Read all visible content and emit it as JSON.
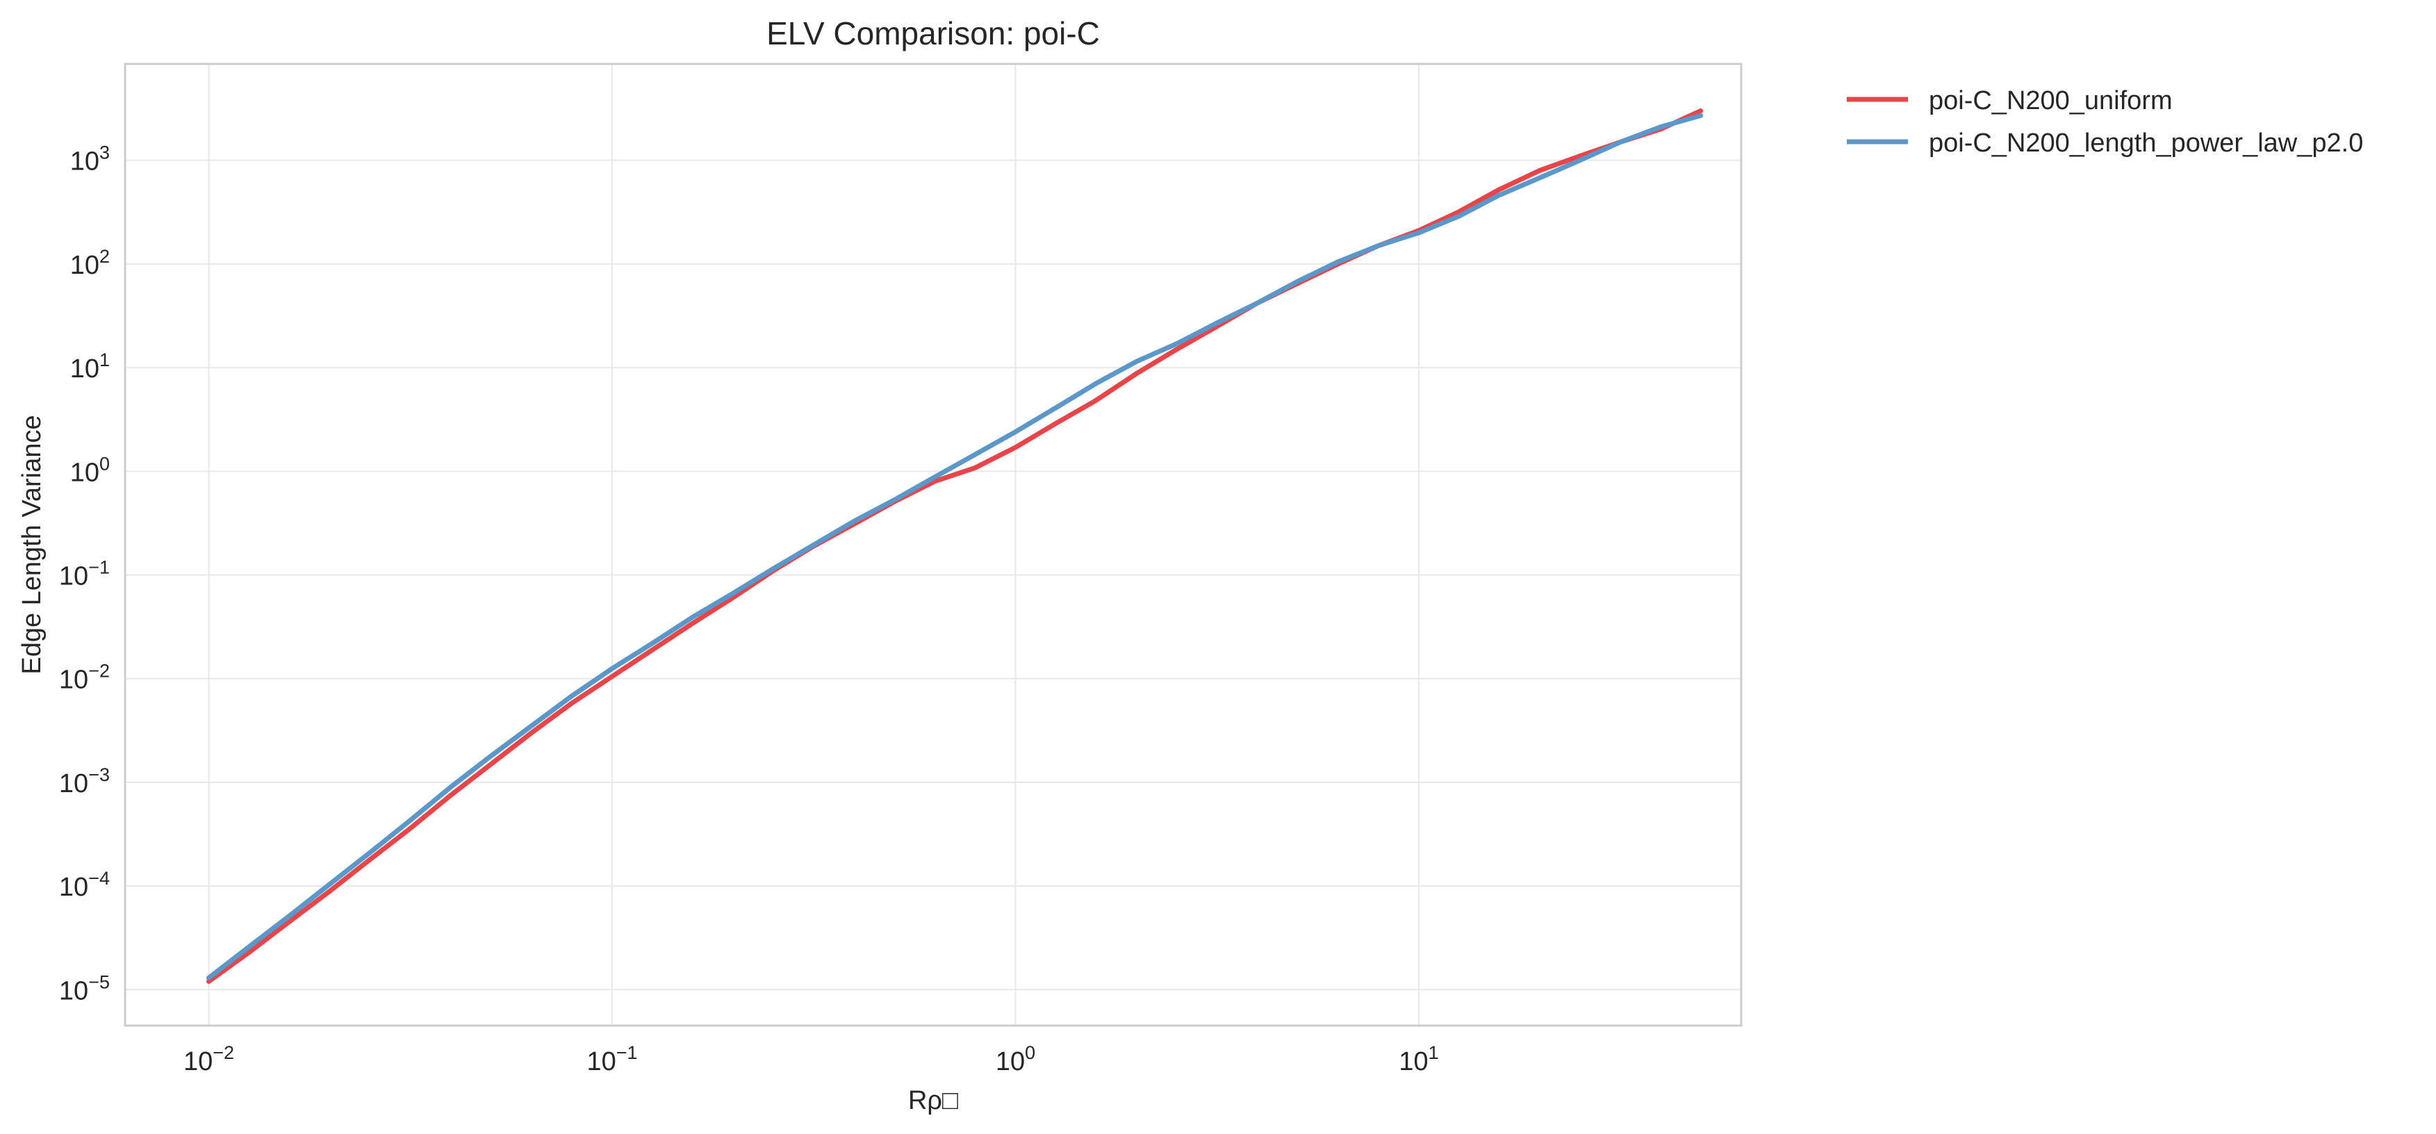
{
  "chart_data": {
    "type": "line",
    "title": "ELV Comparison: poi-C",
    "xlabel": "Rρ□",
    "ylabel": "Edge Length Variance",
    "xscale": "log",
    "yscale": "log",
    "xlim": [
      0.0062,
      63
    ],
    "ylim": [
      4.5e-06,
      8500
    ],
    "grid": true,
    "legend_position": "outside-top-right",
    "x_ticks": [
      {
        "value": 0.01,
        "base": "10",
        "exp": "−2"
      },
      {
        "value": 0.1,
        "base": "10",
        "exp": "−1"
      },
      {
        "value": 1,
        "base": "10",
        "exp": "0"
      },
      {
        "value": 10,
        "base": "10",
        "exp": "1"
      }
    ],
    "y_ticks": [
      {
        "value": 1e-05,
        "base": "10",
        "exp": "−5"
      },
      {
        "value": 0.0001,
        "base": "10",
        "exp": "−4"
      },
      {
        "value": 0.001,
        "base": "10",
        "exp": "−3"
      },
      {
        "value": 0.01,
        "base": "10",
        "exp": "−2"
      },
      {
        "value": 0.1,
        "base": "10",
        "exp": "−1"
      },
      {
        "value": 1,
        "base": "10",
        "exp": "0"
      },
      {
        "value": 10,
        "base": "10",
        "exp": "1"
      },
      {
        "value": 100,
        "base": "10",
        "exp": "2"
      },
      {
        "value": 1000,
        "base": "10",
        "exp": "3"
      }
    ],
    "series": [
      {
        "name": "poi-C_N200_uniform",
        "color": "#e8454a",
        "x": [
          0.01,
          0.0126,
          0.0158,
          0.02,
          0.0251,
          0.0316,
          0.0398,
          0.0501,
          0.0631,
          0.0794,
          0.1,
          0.126,
          0.158,
          0.2,
          0.251,
          0.316,
          0.398,
          0.501,
          0.631,
          0.794,
          1.0,
          1.26,
          1.58,
          2.0,
          2.51,
          3.16,
          3.98,
          5.01,
          6.31,
          7.94,
          10.0,
          12.6,
          15.8,
          20.0,
          25.1,
          31.6,
          39.8,
          50.0
        ],
        "y": [
          1.2e-05,
          2.3e-05,
          4.5e-05,
          9e-05,
          0.00018,
          0.00036,
          0.00075,
          0.0015,
          0.003,
          0.0058,
          0.0105,
          0.019,
          0.034,
          0.061,
          0.11,
          0.19,
          0.31,
          0.51,
          0.8,
          1.08,
          1.7,
          2.9,
          4.8,
          8.8,
          15.0,
          25.0,
          42.0,
          65.0,
          100.0,
          150.0,
          210.0,
          320.0,
          520.0,
          800.0,
          1100.0,
          1500.0,
          2000.0,
          3000.0
        ]
      },
      {
        "name": "poi-C_N200_length_power_law_p2.0",
        "color": "#5b97c9",
        "x": [
          0.01,
          0.0126,
          0.0158,
          0.02,
          0.0251,
          0.0316,
          0.0398,
          0.0501,
          0.0631,
          0.0794,
          0.1,
          0.126,
          0.158,
          0.2,
          0.251,
          0.316,
          0.398,
          0.501,
          0.631,
          0.794,
          1.0,
          1.26,
          1.58,
          2.0,
          2.51,
          3.16,
          3.98,
          5.01,
          6.31,
          7.94,
          10.0,
          12.6,
          15.8,
          20.0,
          25.1,
          31.6,
          39.8,
          50.0
        ],
        "y": [
          1.3e-05,
          2.6e-05,
          5.1e-05,
          0.000105,
          0.00021,
          0.00043,
          0.0009,
          0.0018,
          0.0035,
          0.0068,
          0.0125,
          0.022,
          0.039,
          0.067,
          0.115,
          0.195,
          0.33,
          0.53,
          0.88,
          1.45,
          2.4,
          4.1,
          7.0,
          11.5,
          17.0,
          27.0,
          42.0,
          68.0,
          105.0,
          150.0,
          200.0,
          290.0,
          460.0,
          680.0,
          1000.0,
          1500.0,
          2100.0,
          2700.0
        ]
      }
    ]
  }
}
